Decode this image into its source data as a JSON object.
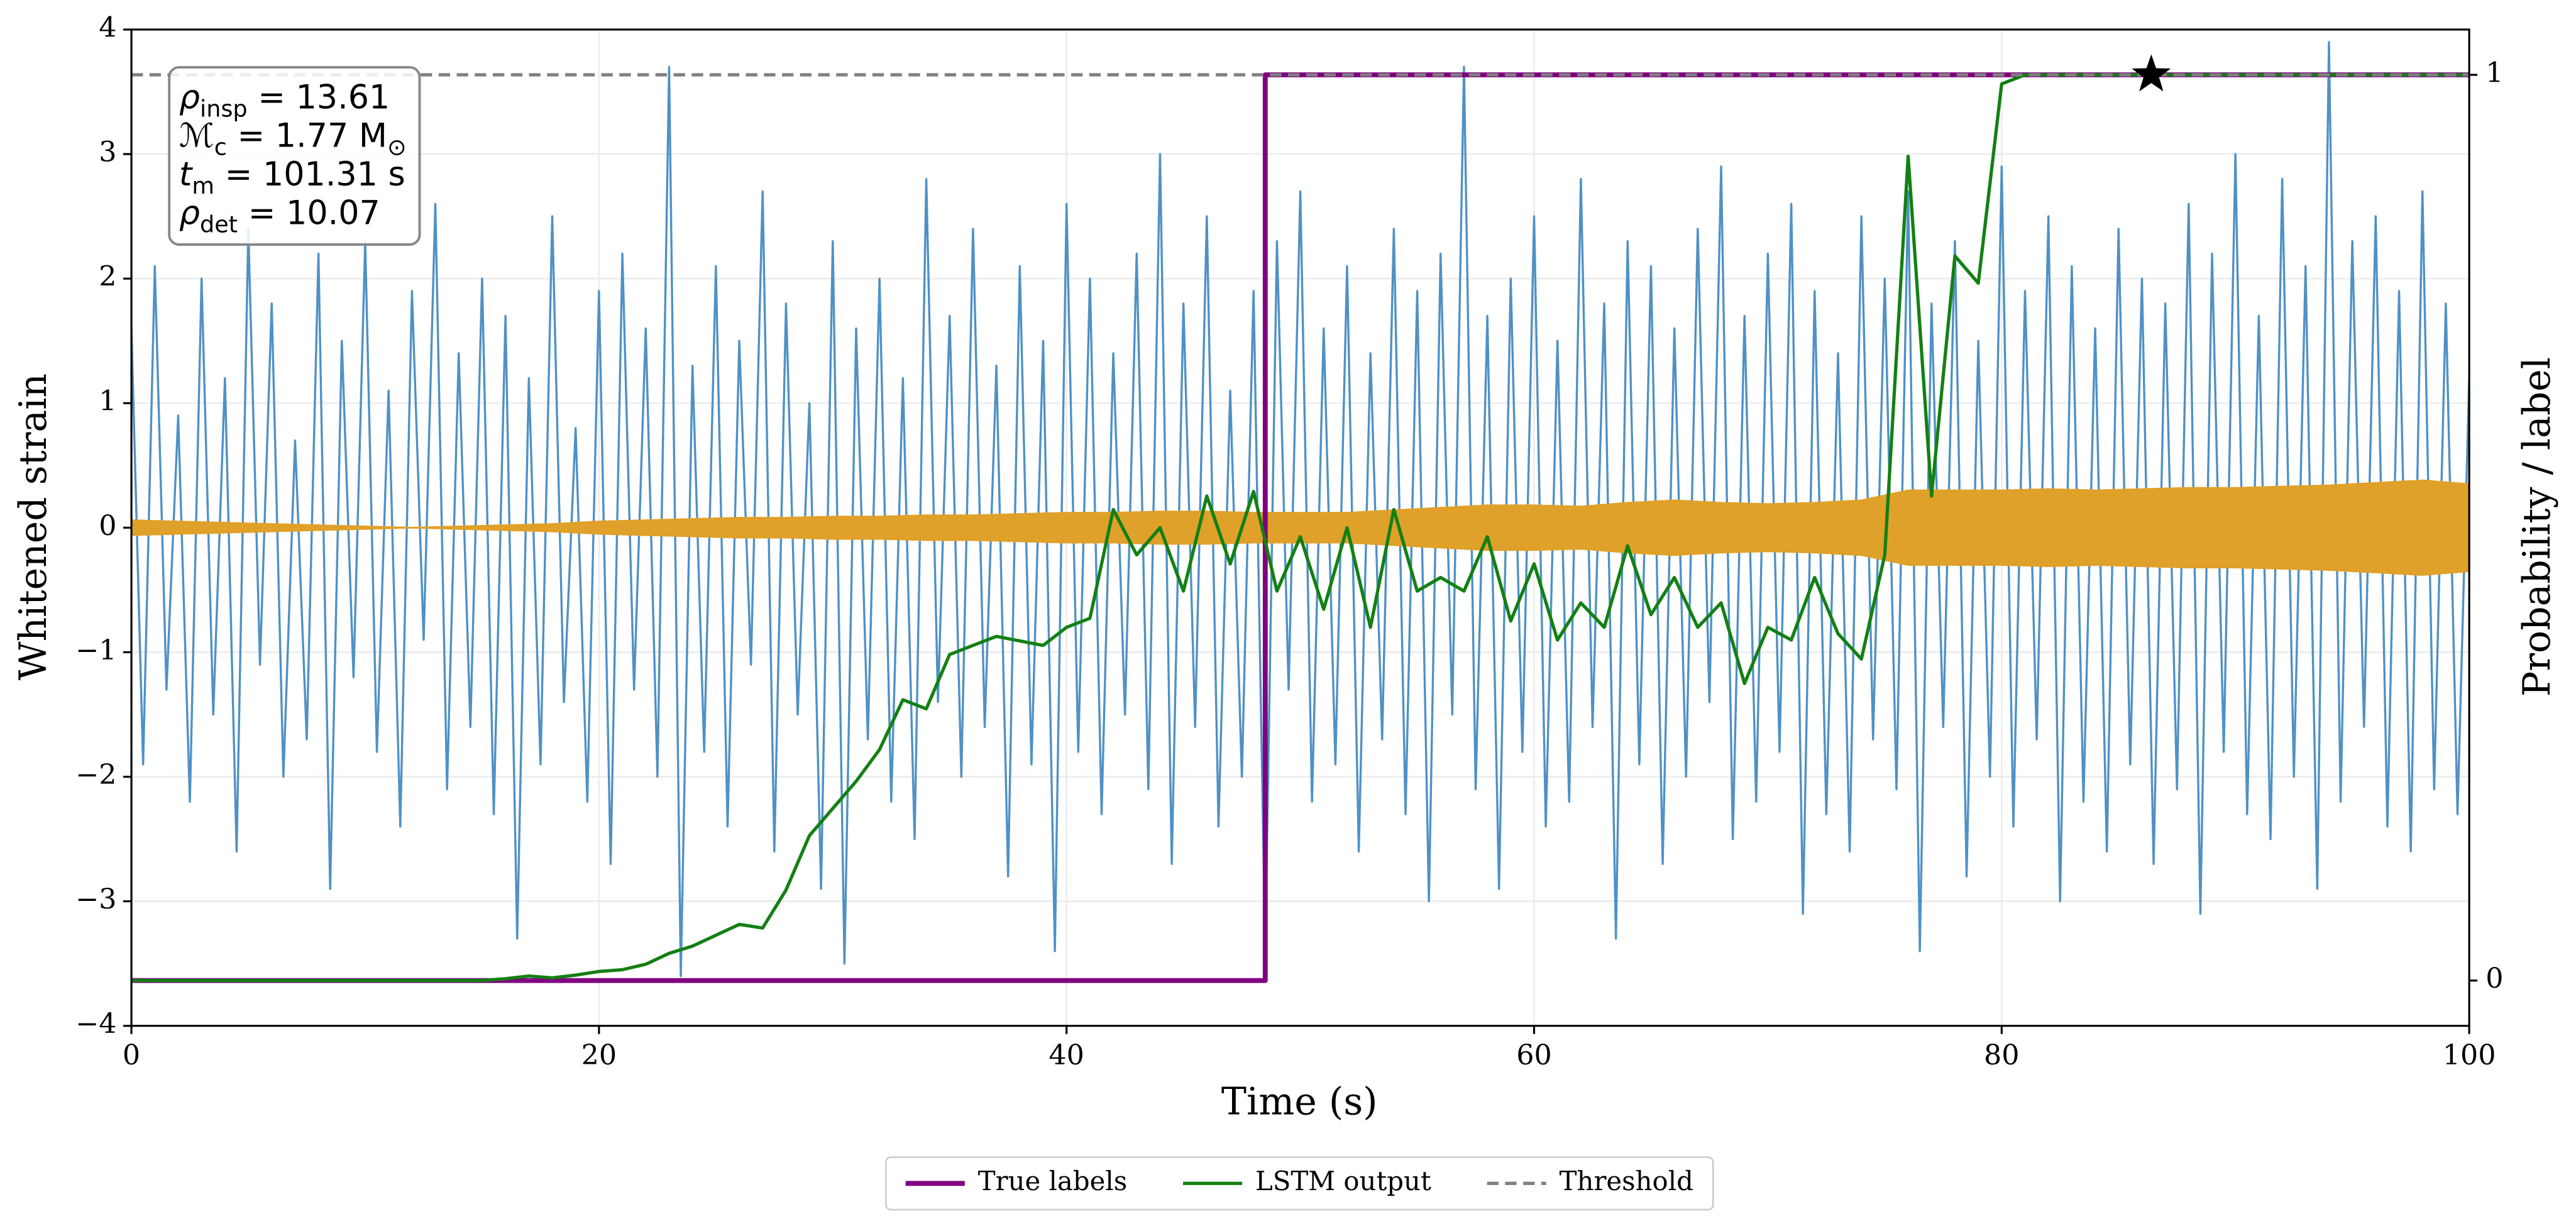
{
  "chart_data": {
    "type": "line",
    "xlabel": "Time (s)",
    "ylabel": "Whitened strain",
    "y2label": "Probability / label",
    "xlim": [
      0,
      100
    ],
    "ylim": [
      -4,
      4
    ],
    "y2lim": [
      -0.05,
      1.05
    ],
    "xticks": [
      0,
      20,
      40,
      60,
      80,
      100
    ],
    "yticks": [
      {
        "value": -4,
        "label": "−4"
      },
      {
        "value": -3,
        "label": "−3"
      },
      {
        "value": -2,
        "label": "−2"
      },
      {
        "value": -1,
        "label": "−1"
      },
      0,
      1,
      2,
      3,
      4
    ],
    "y2ticks": [
      0,
      1
    ],
    "grid": true,
    "legend": "bottom",
    "series": [
      {
        "color": "#4f91c5",
        "x": [
          0,
          0.5,
          1,
          1.5,
          2,
          2.5,
          3,
          3.5,
          4,
          4.5,
          5,
          5.5,
          6,
          6.5,
          7,
          7.5,
          8,
          8.5,
          9,
          9.5,
          10,
          10.5,
          11,
          11.5,
          12,
          12.5,
          13,
          13.5,
          14,
          14.5,
          15,
          15.5,
          16,
          16.5,
          17,
          17.5,
          18,
          18.5,
          19,
          19.5,
          20,
          20.5,
          21,
          21.5,
          22,
          22.5,
          23,
          23.5,
          24,
          24.5,
          25,
          25.5,
          26,
          26.5,
          27,
          27.5,
          28,
          28.5,
          29,
          29.5,
          30,
          30.5,
          31,
          31.5,
          32,
          32.5,
          33,
          33.5,
          34,
          34.5,
          35,
          35.5,
          36,
          36.5,
          37,
          37.5,
          38,
          38.5,
          39,
          39.5,
          40,
          40.5,
          41,
          41.5,
          42,
          42.5,
          43,
          43.5,
          44,
          44.5,
          45,
          45.5,
          46,
          46.5,
          47,
          47.5,
          48,
          48.5,
          49,
          49.5,
          50,
          50.5,
          51,
          51.5,
          52,
          52.5,
          53,
          53.5,
          54,
          54.5,
          55,
          55.5,
          56,
          56.5,
          57,
          57.5,
          58,
          58.5,
          59,
          59.5,
          60,
          60.5,
          61,
          61.5,
          62,
          62.5,
          63,
          63.5,
          64,
          64.5,
          65,
          65.5,
          66,
          66.5,
          67,
          67.5,
          68,
          68.5,
          69,
          69.5,
          70,
          70.5,
          71,
          71.5,
          72,
          72.5,
          73,
          73.5,
          74,
          74.5,
          75,
          75.5,
          76,
          76.5,
          77,
          77.5,
          78,
          78.5,
          79,
          79.5,
          80,
          80.5,
          81,
          81.5,
          82,
          82.5,
          83,
          83.5,
          84,
          84.5,
          85,
          85.5,
          86,
          86.5,
          87,
          87.5,
          88,
          88.5,
          89,
          89.5,
          90,
          90.5,
          91,
          91.5,
          92,
          92.5,
          93,
          93.5,
          94,
          94.5,
          95,
          95.5,
          96,
          96.5,
          97,
          97.5,
          98,
          98.5,
          99,
          99.5,
          100
        ],
        "values": [
          1.6,
          -1.9,
          2.1,
          -1.3,
          0.9,
          -2.2,
          2.0,
          -1.5,
          1.2,
          -2.6,
          2.4,
          -1.1,
          1.8,
          -2.0,
          0.7,
          -1.7,
          2.2,
          -2.9,
          1.5,
          -1.2,
          2.3,
          -1.8,
          1.1,
          -2.4,
          1.9,
          -0.9,
          2.6,
          -2.1,
          1.4,
          -1.6,
          2.0,
          -2.3,
          1.7,
          -3.3,
          1.2,
          -1.9,
          2.5,
          -1.4,
          0.8,
          -2.2,
          1.9,
          -2.7,
          2.2,
          -1.3,
          1.6,
          -2.0,
          3.7,
          -3.6,
          1.3,
          -1.8,
          2.1,
          -2.4,
          1.5,
          -1.1,
          2.7,
          -2.6,
          1.8,
          -1.5,
          1.0,
          -2.9,
          2.3,
          -3.5,
          1.6,
          -1.7,
          2.0,
          -2.2,
          1.2,
          -2.5,
          2.8,
          -1.4,
          1.7,
          -2.0,
          2.4,
          -1.6,
          1.3,
          -2.8,
          2.1,
          -1.9,
          1.5,
          -3.4,
          2.6,
          -1.8,
          2.0,
          -2.3,
          1.4,
          -1.5,
          2.2,
          -2.1,
          3.0,
          -2.7,
          1.8,
          -1.6,
          2.5,
          -2.4,
          1.1,
          -2.0,
          1.9,
          -3.4,
          2.3,
          -1.3,
          2.7,
          -2.2,
          1.6,
          -1.9,
          2.1,
          -2.6,
          1.4,
          -1.7,
          2.4,
          -2.3,
          1.9,
          -3.0,
          2.2,
          -1.5,
          3.7,
          -2.1,
          1.7,
          -2.9,
          2.0,
          -1.8,
          2.5,
          -2.4,
          1.5,
          -2.2,
          2.8,
          -1.6,
          1.8,
          -3.3,
          2.3,
          -1.9,
          2.1,
          -2.7,
          1.6,
          -2.0,
          2.4,
          -1.4,
          2.9,
          -2.5,
          1.7,
          -2.2,
          2.2,
          -1.8,
          2.6,
          -3.1,
          1.9,
          -2.3,
          1.4,
          -2.6,
          2.5,
          -1.7,
          2.0,
          -2.1,
          2.7,
          -3.4,
          1.8,
          -1.6,
          2.3,
          -2.8,
          1.5,
          -2.0,
          2.9,
          -2.4,
          1.9,
          -1.7,
          2.5,
          -3.0,
          2.1,
          -2.2,
          1.6,
          -2.6,
          2.4,
          -1.9,
          2.0,
          -2.7,
          1.8,
          -2.1,
          2.6,
          -3.1,
          2.2,
          -1.8,
          3.0,
          -2.3,
          1.7,
          -2.5,
          2.8,
          -2.0,
          2.1,
          -2.9,
          3.9,
          -2.2,
          2.3,
          -1.6,
          2.5,
          -2.4,
          1.9,
          -2.6,
          2.7,
          -2.1,
          1.8,
          -2.3,
          1.2
        ]
      },
      {
        "color": "#e0a12a",
        "style": "band",
        "x": [
          0,
          2,
          4,
          6,
          8,
          10,
          12,
          14,
          16,
          18,
          20,
          22,
          24,
          26,
          28,
          30,
          32,
          34,
          36,
          38,
          40,
          42,
          44,
          46,
          48,
          50,
          52,
          54,
          56,
          58,
          60,
          62,
          64,
          66,
          68,
          70,
          72,
          74,
          76,
          78,
          80,
          82,
          84,
          86,
          88,
          90,
          92,
          94,
          96,
          98,
          100
        ],
        "values": [
          0.06,
          0.05,
          0.04,
          0.03,
          0.02,
          0.01,
          0.0,
          0.01,
          0.02,
          0.03,
          0.05,
          0.06,
          0.07,
          0.08,
          0.08,
          0.09,
          0.09,
          0.1,
          0.1,
          0.11,
          0.12,
          0.12,
          0.13,
          0.13,
          0.12,
          0.12,
          0.12,
          0.14,
          0.16,
          0.18,
          0.18,
          0.17,
          0.2,
          0.22,
          0.2,
          0.19,
          0.2,
          0.22,
          0.3,
          0.3,
          0.3,
          0.31,
          0.3,
          0.31,
          0.32,
          0.32,
          0.33,
          0.34,
          0.36,
          0.38,
          0.35
        ]
      },
      {
        "name": "True labels",
        "color": "#800080",
        "axis": "y2",
        "width": 3,
        "x": [
          0,
          48.5,
          48.5,
          100
        ],
        "values": [
          0,
          0,
          1,
          1
        ]
      },
      {
        "name": "LSTM output",
        "color": "#138013",
        "axis": "y2",
        "width": 2,
        "x": [
          0,
          1,
          2,
          3,
          4,
          5,
          6,
          7,
          8,
          9,
          10,
          11,
          12,
          13,
          14,
          15,
          16,
          17,
          18,
          19,
          20,
          21,
          22,
          23,
          24,
          25,
          26,
          27,
          28,
          29,
          30,
          31,
          32,
          33,
          34,
          35,
          36,
          37,
          38,
          39,
          40,
          41,
          42,
          43,
          44,
          45,
          46,
          47,
          48,
          49,
          50,
          51,
          52,
          53,
          54,
          55,
          56,
          57,
          58,
          59,
          60,
          61,
          62,
          63,
          64,
          65,
          66,
          67,
          68,
          69,
          70,
          71,
          72,
          73,
          74,
          75,
          76,
          77,
          78,
          79,
          80,
          81,
          82,
          83,
          84,
          85,
          86,
          87,
          88,
          89,
          90,
          91,
          92,
          93,
          94,
          95,
          96,
          97,
          98,
          99,
          100
        ],
        "values": [
          0,
          0,
          0,
          0,
          0,
          0,
          0,
          0,
          0,
          0,
          0,
          0,
          0,
          0,
          0,
          0,
          0.002,
          0.005,
          0.003,
          0.006,
          0.01,
          0.012,
          0.018,
          0.03,
          0.038,
          0.05,
          0.062,
          0.058,
          0.1,
          0.16,
          0.19,
          0.22,
          0.255,
          0.31,
          0.3,
          0.36,
          0.37,
          0.38,
          0.375,
          0.37,
          0.39,
          0.4,
          0.52,
          0.47,
          0.5,
          0.43,
          0.535,
          0.46,
          0.54,
          0.43,
          0.49,
          0.41,
          0.5,
          0.39,
          0.52,
          0.43,
          0.445,
          0.43,
          0.49,
          0.397,
          0.46,
          0.376,
          0.417,
          0.39,
          0.48,
          0.404,
          0.445,
          0.39,
          0.417,
          0.328,
          0.39,
          0.376,
          0.445,
          0.383,
          0.355,
          0.47,
          0.91,
          0.535,
          0.8,
          0.77,
          0.99,
          1,
          1,
          1,
          1,
          1,
          1,
          1,
          1,
          1,
          1,
          1,
          1,
          1,
          1,
          1,
          1,
          1,
          1,
          1,
          1
        ]
      }
    ],
    "threshold": {
      "name": "Threshold",
      "value": 1,
      "color": "#808080"
    },
    "detection": {
      "x": 86.4,
      "value": 1,
      "color": "#000000"
    },
    "annotations": [
      [
        {
          "text": "ρ"
        },
        {
          "text": "insp",
          "sub": true
        },
        {
          "text": " = 13.61"
        }
      ],
      [
        {
          "text": "ℳ"
        },
        {
          "text": "c",
          "sub": true
        },
        {
          "text": " = 1.77 M"
        },
        {
          "text": "⊙",
          "sub": true
        }
      ],
      [
        {
          "text": "t"
        },
        {
          "text": "m",
          "sub": true
        },
        {
          "text": " = 101.31 s"
        }
      ],
      [
        {
          "text": "ρ"
        },
        {
          "text": "det",
          "sub": true
        },
        {
          "text": " = 10.07"
        }
      ]
    ]
  }
}
